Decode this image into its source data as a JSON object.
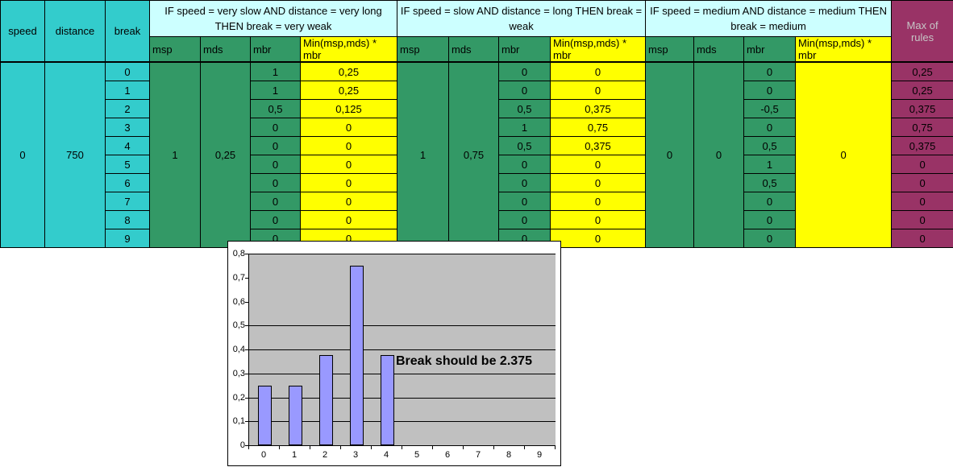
{
  "colors": {
    "turquoise": "#33CCCC",
    "light_turquoise": "#CCFFFF",
    "green": "#339966",
    "yellow": "#FFFF00",
    "plum": "#993366",
    "max_header_text": "#C6C6C6",
    "bar_fill": "#9999FF",
    "plot_background": "#C0C0C0"
  },
  "table": {
    "corner": {
      "speed": "speed",
      "distance": "distance",
      "break": "break"
    },
    "speed_value": "0",
    "distance_value": "750",
    "break_values": [
      "0",
      "1",
      "2",
      "3",
      "4",
      "5",
      "6",
      "7",
      "8",
      "9"
    ],
    "rules": [
      {
        "title": "IF speed = very slow AND distance = very long THEN break = very weak",
        "headers": [
          "msp",
          "mds",
          "mbr",
          "Min(msp,mds) * mbr"
        ],
        "msp": "1",
        "mds": "0,25",
        "mbr": [
          "1",
          "1",
          "0,5",
          "0",
          "0",
          "0",
          "0",
          "0",
          "0",
          "0"
        ],
        "min": [
          "0,25",
          "0,25",
          "0,125",
          "0",
          "0",
          "0",
          "0",
          "0",
          "0",
          "0"
        ]
      },
      {
        "title": "IF speed = slow AND distance = long THEN break = weak",
        "headers": [
          "msp",
          "mds",
          "mbr",
          "Min(msp,mds) * mbr"
        ],
        "msp": "1",
        "mds": "0,75",
        "mbr": [
          "0",
          "0",
          "0,5",
          "1",
          "0,5",
          "0",
          "0",
          "0",
          "0",
          "0"
        ],
        "min": [
          "0",
          "0",
          "0,375",
          "0,75",
          "0,375",
          "0",
          "0",
          "0",
          "0",
          "0"
        ]
      },
      {
        "title": "IF speed = medium AND distance = medium THEN break = medium",
        "headers": [
          "msp",
          "mds",
          "mbr",
          "Min(msp,mds) * mbr"
        ],
        "msp": "0",
        "mds": "0",
        "mbr": [
          "0",
          "0",
          "-0,5",
          "0",
          "0,5",
          "1",
          "0,5",
          "0",
          "0",
          "0"
        ],
        "min_merged": "0"
      }
    ],
    "max_header": "Max of rules",
    "max_values": [
      "0,25",
      "0,25",
      "0,375",
      "0,75",
      "0,375",
      "0",
      "0",
      "0",
      "0",
      "0"
    ]
  },
  "chart_data": {
    "type": "bar",
    "title": "",
    "categories": [
      "0",
      "1",
      "2",
      "3",
      "4",
      "5",
      "6",
      "7",
      "8",
      "9"
    ],
    "values": [
      0.25,
      0.25,
      0.375,
      0.75,
      0.375,
      0,
      0,
      0,
      0,
      0
    ],
    "xlabel": "",
    "ylabel": "",
    "ylim": [
      0,
      0.8
    ],
    "y_tick_labels": [
      "0,8",
      "0,7",
      "0,6",
      "0,5",
      "0,4",
      "0,3",
      "0,2",
      "0,1",
      "0"
    ],
    "y_tick_values": [
      0.8,
      0.7,
      0.6,
      0.5,
      0.4,
      0.3,
      0.2,
      0.1,
      0
    ],
    "gridlines_at": [
      0.8,
      0.5,
      0.4,
      0.3,
      0.2,
      0.1
    ],
    "legend": "none",
    "grid": true,
    "annotation": "Break should be 2.375"
  }
}
